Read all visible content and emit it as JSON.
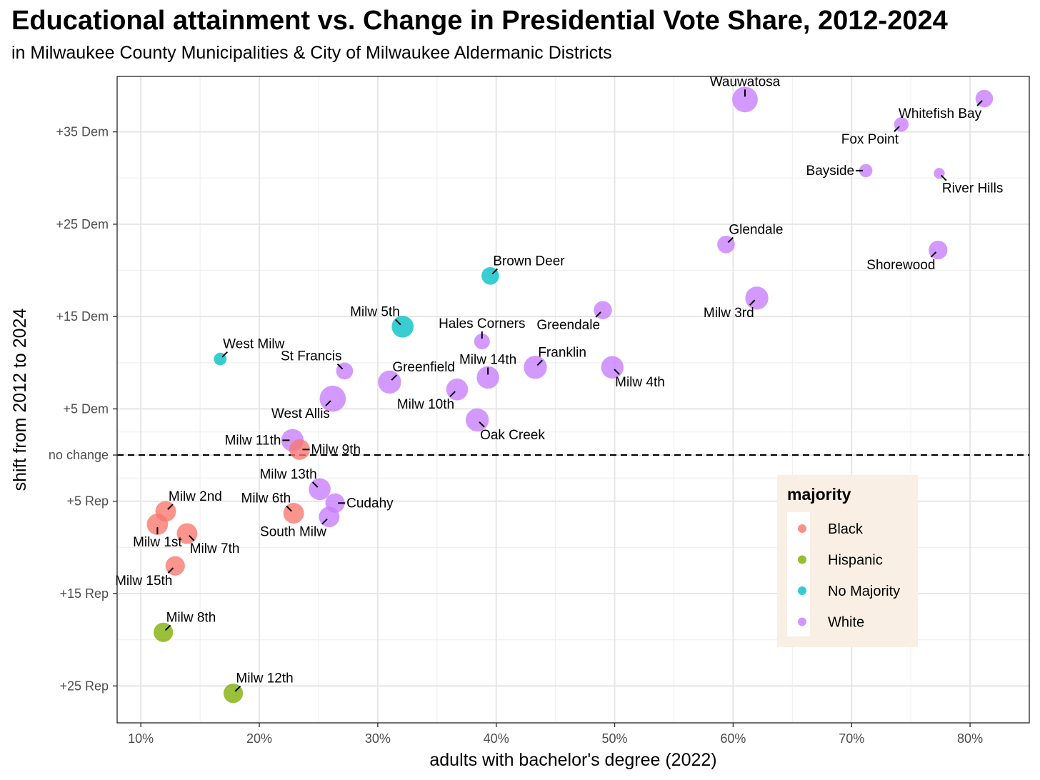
{
  "chart_data": {
    "type": "scatter",
    "title": "Educational attainment vs. Change in Presidential Vote Share, 2012-2024",
    "subtitle": "in Milwaukee County Municipalities & City of Milwaukee Aldermanic Districts",
    "xlabel": "adults with bachelor's degree (2022)",
    "ylabel": "shift from 2012 to 2024",
    "xlim": [
      0.08,
      0.85
    ],
    "ylim": [
      -29,
      41
    ],
    "x_ticks": [
      {
        "value": 0.1,
        "label": "10%"
      },
      {
        "value": 0.2,
        "label": "20%"
      },
      {
        "value": 0.3,
        "label": "30%"
      },
      {
        "value": 0.4,
        "label": "40%"
      },
      {
        "value": 0.5,
        "label": "50%"
      },
      {
        "value": 0.6,
        "label": "60%"
      },
      {
        "value": 0.7,
        "label": "70%"
      },
      {
        "value": 0.8,
        "label": "80%"
      }
    ],
    "y_ticks": [
      {
        "value": 35,
        "label": "+35 Dem"
      },
      {
        "value": 25,
        "label": "+25 Dem"
      },
      {
        "value": 15,
        "label": "+15 Dem"
      },
      {
        "value": 5,
        "label": "+5 Dem"
      },
      {
        "value": 0,
        "label": "no change"
      },
      {
        "value": -5,
        "label": "+5 Rep"
      },
      {
        "value": -15,
        "label": "+15 Rep"
      },
      {
        "value": -25,
        "label": "+25 Rep"
      }
    ],
    "reference_line": {
      "y": 0,
      "style": "dashed"
    },
    "grid": true,
    "legend": {
      "title": "majority",
      "placement": "bottom-right inside plot",
      "entries": [
        {
          "name": "Black",
          "color": "#F8766D"
        },
        {
          "name": "Hispanic",
          "color": "#7CAE00"
        },
        {
          "name": "No Majority",
          "color": "#00BFC4"
        },
        {
          "name": "White",
          "color": "#C77CFF"
        }
      ]
    },
    "colors": {
      "Black": "#F8766D",
      "Hispanic": "#7CAE00",
      "No Majority": "#00BFC4",
      "White": "#C77CFF"
    },
    "points": [
      {
        "label": "Wauwatosa",
        "x": 0.61,
        "y": 38.5,
        "size": 3.0,
        "majority": "White",
        "label_pos": "above"
      },
      {
        "label": "Whitefish Bay",
        "x": 0.812,
        "y": 38.6,
        "size": 1.7,
        "majority": "White",
        "label_pos": "below-left"
      },
      {
        "label": "Fox Point",
        "x": 0.742,
        "y": 35.8,
        "size": 1.2,
        "majority": "White",
        "label_pos": "below-left"
      },
      {
        "label": "Bayside",
        "x": 0.712,
        "y": 30.8,
        "size": 1.0,
        "majority": "White",
        "label_pos": "left"
      },
      {
        "label": "River Hills",
        "x": 0.774,
        "y": 30.5,
        "size": 0.6,
        "majority": "White",
        "label_pos": "below-right"
      },
      {
        "label": "Glendale",
        "x": 0.594,
        "y": 22.8,
        "size": 1.7,
        "majority": "White",
        "label_pos": "above-right"
      },
      {
        "label": "Shorewood",
        "x": 0.773,
        "y": 22.2,
        "size": 1.9,
        "majority": "White",
        "label_pos": "below-left"
      },
      {
        "label": "Brown Deer",
        "x": 0.395,
        "y": 19.4,
        "size": 1.7,
        "majority": "No Majority",
        "label_pos": "above-right"
      },
      {
        "label": "Milw 3rd",
        "x": 0.62,
        "y": 17.0,
        "size": 2.6,
        "majority": "White",
        "label_pos": "below-left"
      },
      {
        "label": "Greendale",
        "x": 0.49,
        "y": 15.7,
        "size": 1.8,
        "majority": "White",
        "label_pos": "below-left"
      },
      {
        "label": "Milw 5th",
        "x": 0.321,
        "y": 13.9,
        "size": 2.4,
        "majority": "No Majority",
        "label_pos": "above-left"
      },
      {
        "label": "Hales Corners",
        "x": 0.388,
        "y": 12.3,
        "size": 1.4,
        "majority": "White",
        "label_pos": "above"
      },
      {
        "label": "West Milw",
        "x": 0.167,
        "y": 10.4,
        "size": 0.9,
        "majority": "No Majority",
        "label_pos": "above-right"
      },
      {
        "label": "St Francis",
        "x": 0.272,
        "y": 9.1,
        "size": 1.6,
        "majority": "White",
        "label_pos": "above-left"
      },
      {
        "label": "Franklin",
        "x": 0.433,
        "y": 9.5,
        "size": 2.6,
        "majority": "White",
        "label_pos": "above-right"
      },
      {
        "label": "Milw 4th",
        "x": 0.498,
        "y": 9.5,
        "size": 2.5,
        "majority": "White",
        "label_pos": "below-right"
      },
      {
        "label": "Milw 14th",
        "x": 0.393,
        "y": 8.4,
        "size": 2.5,
        "majority": "White",
        "label_pos": "above"
      },
      {
        "label": "Greenfield",
        "x": 0.31,
        "y": 7.9,
        "size": 2.6,
        "majority": "White",
        "label_pos": "above-right"
      },
      {
        "label": "Milw 10th",
        "x": 0.367,
        "y": 7.1,
        "size": 2.4,
        "majority": "White",
        "label_pos": "below-left"
      },
      {
        "label": "West Allis",
        "x": 0.262,
        "y": 6.1,
        "size": 3.1,
        "majority": "White",
        "label_pos": "below-left"
      },
      {
        "label": "Oak Creek",
        "x": 0.384,
        "y": 3.8,
        "size": 2.6,
        "majority": "White",
        "label_pos": "below-right"
      },
      {
        "label": "Milw 11th",
        "x": 0.228,
        "y": 1.6,
        "size": 2.5,
        "majority": "White",
        "label_pos": "left"
      },
      {
        "label": "Milw 9th",
        "x": 0.234,
        "y": 0.6,
        "size": 2.2,
        "majority": "Black",
        "label_pos": "right"
      },
      {
        "label": "Milw 13th",
        "x": 0.251,
        "y": -3.7,
        "size": 2.4,
        "majority": "White",
        "label_pos": "above-left"
      },
      {
        "label": "Cudahy",
        "x": 0.264,
        "y": -5.2,
        "size": 2.0,
        "majority": "White",
        "label_pos": "right"
      },
      {
        "label": "Milw 6th",
        "x": 0.229,
        "y": -6.3,
        "size": 2.2,
        "majority": "Black",
        "label_pos": "above-left"
      },
      {
        "label": "South Milw",
        "x": 0.259,
        "y": -6.7,
        "size": 2.2,
        "majority": "White",
        "label_pos": "below-left"
      },
      {
        "label": "Milw 2nd",
        "x": 0.121,
        "y": -6.1,
        "size": 2.2,
        "majority": "Black",
        "label_pos": "above-right"
      },
      {
        "label": "Milw 1st",
        "x": 0.114,
        "y": -7.5,
        "size": 2.3,
        "majority": "Black",
        "label_pos": "below"
      },
      {
        "label": "Milw 7th",
        "x": 0.139,
        "y": -8.5,
        "size": 2.2,
        "majority": "Black",
        "label_pos": "below-right"
      },
      {
        "label": "Milw 15th",
        "x": 0.129,
        "y": -12.0,
        "size": 2.0,
        "majority": "Black",
        "label_pos": "below-left"
      },
      {
        "label": "Milw 8th",
        "x": 0.119,
        "y": -19.2,
        "size": 2.0,
        "majority": "Hispanic",
        "label_pos": "above-right"
      },
      {
        "label": "Milw 12th",
        "x": 0.178,
        "y": -25.8,
        "size": 2.0,
        "majority": "Hispanic",
        "label_pos": "above-right"
      }
    ]
  }
}
